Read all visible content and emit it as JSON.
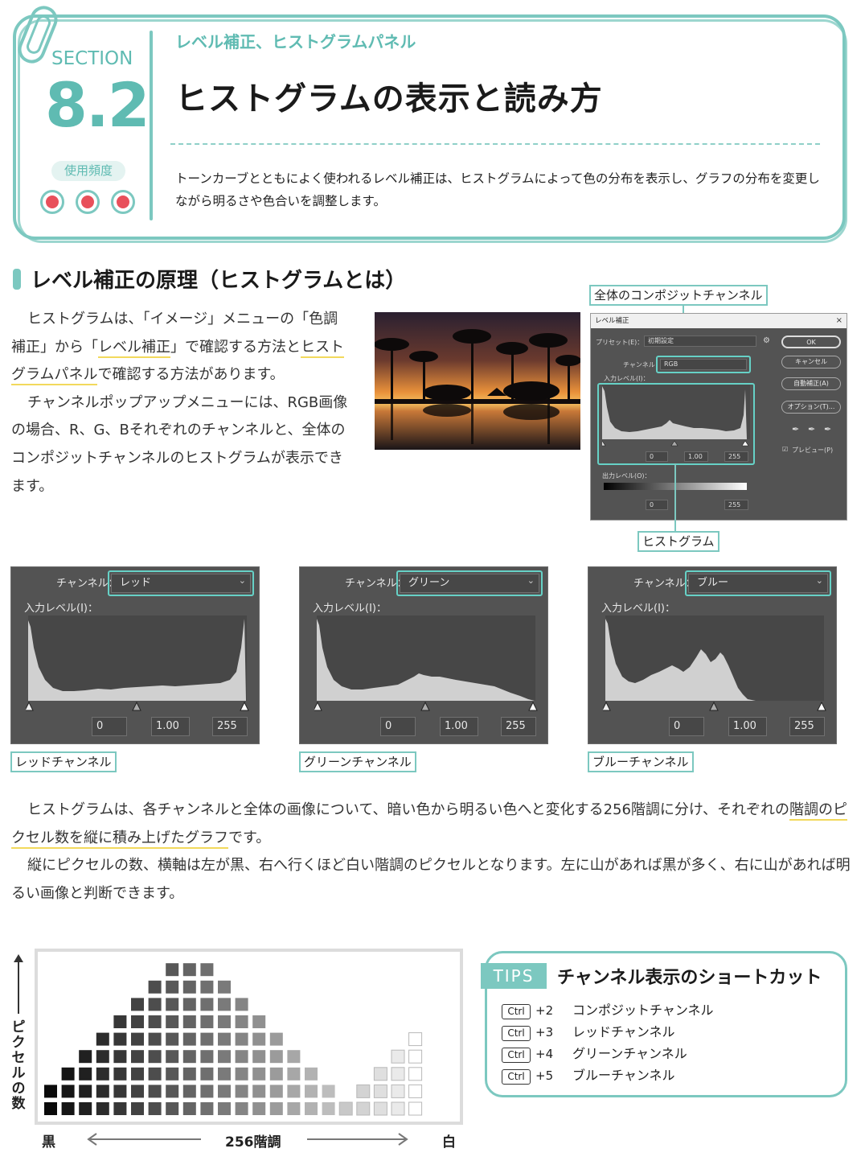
{
  "header": {
    "section_label": "SECTION",
    "section_number": "8.2",
    "frequency_label": "使用頻度",
    "frequency_level": 3,
    "subtitle": "レベル補正、ヒストグラムパネル",
    "title": "ヒストグラムの表示と読み方",
    "description": "トーンカーブとともによく使われるレベル補正は、ヒストグラムによって色の分布を表示し、グラフの分布を変更しながら明るさや色合いを調整します。"
  },
  "section1": {
    "heading": "レベル補正の原理（ヒストグラムとは）",
    "p1_a": "ヒストグラムは、「イメージ」メニューの「色調補正」から「",
    "p1_hl1": "レベル補正",
    "p1_b": "」で確認する方法と",
    "p1_hl2": "ヒストグラムパネル",
    "p1_c": "で確認する方法があります。",
    "p2": "チャンネルポップアップメニューには、RGB画像の場合、R、G、Bそれぞれのチャンネルと、全体のコンポジットチャンネルのヒストグラムが表示できます。"
  },
  "dialog": {
    "callout_top": "全体のコンポジットチャンネル",
    "callout_bottom": "ヒストグラム",
    "title": "レベル補正",
    "close": "×",
    "preset_label": "プリセット(E)：",
    "preset_value": "初期設定",
    "channel_label": "チャンネル：",
    "channel_value": "RGB",
    "input_label": "入力レベル(I)：",
    "input_values": [
      "0",
      "1.00",
      "255"
    ],
    "output_label": "出力レベル(O)：",
    "output_values": [
      "0",
      "255"
    ],
    "buttons": [
      "OK",
      "キャンセル",
      "自動補正(A)",
      "オプション(T)..."
    ],
    "preview_label": "プレビュー(P)"
  },
  "channels": [
    {
      "channel_label": "チャンネル：",
      "value": "レッド",
      "input_label": "入力レベル(I)：",
      "inputs": [
        "0",
        "1.00",
        "255"
      ],
      "caption": "レッドチャンネル"
    },
    {
      "channel_label": "チャンネル：",
      "value": "グリーン",
      "input_label": "入力レベル(I)：",
      "inputs": [
        "0",
        "1.00",
        "255"
      ],
      "caption": "グリーンチャンネル"
    },
    {
      "channel_label": "チャンネル：",
      "value": "ブルー",
      "input_label": "入力レベル(I)：",
      "inputs": [
        "0",
        "1.00",
        "255"
      ],
      "caption": "ブルーチャンネル"
    }
  ],
  "explain": {
    "p1_a": "ヒストグラムは、各チャンネルと全体の画像について、暗い色から明るい色へと変化する256階調に分け、それぞれの",
    "p1_hl": "階調のピクセル数を縦に積み上げたグラフ",
    "p1_b": "です。",
    "p2": "縦にピクセルの数、横軸は左が黒、右へ行くほど白い階調のピクセルとなります。左に山があれば黒が多く、右に山があれば明るい画像と判断できます。"
  },
  "diagram": {
    "y_label": "ピクセルの数",
    "x_left": "黒",
    "x_center": "256階調",
    "x_right": "白",
    "column_heights": [
      2,
      3,
      4,
      5,
      6,
      7,
      8,
      9,
      9,
      9,
      8,
      7,
      6,
      5,
      4,
      3,
      2,
      1,
      2,
      3,
      4,
      5
    ]
  },
  "tips": {
    "tag": "TIPS",
    "title": "チャンネル表示のショートカット",
    "rows": [
      {
        "key": "Ctrl",
        "plus": "+2",
        "desc": "コンポジットチャンネル"
      },
      {
        "key": "Ctrl",
        "plus": "+3",
        "desc": "レッドチャンネル"
      },
      {
        "key": "Ctrl",
        "plus": "+4",
        "desc": "グリーンチャンネル"
      },
      {
        "key": "Ctrl",
        "plus": "+5",
        "desc": "ブルーチャンネル"
      }
    ]
  },
  "colors": {
    "accent": "#7cc8c0",
    "dot": "#e8505b",
    "underline": "#f2d95c",
    "panel_bg": "#535353"
  }
}
